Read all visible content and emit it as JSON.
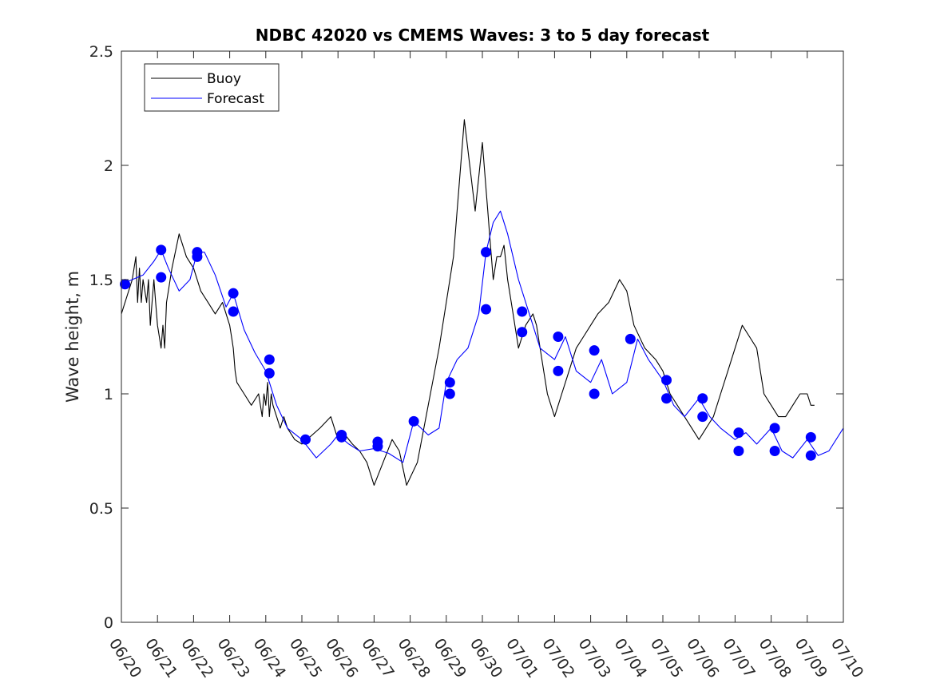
{
  "chart_data": {
    "type": "line",
    "title": "NDBC 42020 vs CMEMS Waves: 3 to 5 day forecast",
    "ylabel": "Wave height, m",
    "xlabel": "",
    "ylim": [
      0,
      2.5
    ],
    "yticks": [
      "0",
      "0.5",
      "1",
      "1.5",
      "2",
      "2.5"
    ],
    "x_ticks": [
      "06/20",
      "06/21",
      "06/22",
      "06/23",
      "06/24",
      "06/25",
      "06/26",
      "06/27",
      "06/28",
      "06/29",
      "06/30",
      "07/01",
      "07/02",
      "07/03",
      "07/04",
      "07/05",
      "07/06",
      "07/07",
      "07/08",
      "07/09",
      "07/10"
    ],
    "grid": false,
    "legend_position": "top-left",
    "colors": {
      "buoy": "#000000",
      "forecast": "#0000ff"
    },
    "legend": [
      {
        "label": "Buoy",
        "color": "#000000"
      },
      {
        "label": "Forecast",
        "color": "#0000ff"
      }
    ],
    "series": [
      {
        "name": "Buoy",
        "color": "#000000",
        "x": [
          0,
          0.3,
          0.4,
          0.45,
          0.5,
          0.55,
          0.6,
          0.65,
          0.7,
          0.75,
          0.8,
          0.85,
          0.9,
          0.95,
          1.0,
          1.05,
          1.1,
          1.15,
          1.2,
          1.25,
          1.3,
          1.4,
          1.6,
          1.8,
          2.0,
          2.2,
          2.4,
          2.6,
          2.8,
          3.0,
          3.05,
          3.1,
          3.15,
          3.2,
          3.4,
          3.6,
          3.8,
          3.9,
          3.95,
          4.0,
          4.05,
          4.1,
          4.15,
          4.2,
          4.3,
          4.4,
          4.5,
          4.6,
          4.8,
          5.0,
          5.5,
          5.8,
          6.0,
          6.2,
          6.4,
          6.6,
          6.8,
          7.0,
          7.5,
          7.7,
          7.9,
          8.2,
          8.5,
          8.8,
          8.9,
          9.0,
          9.2,
          9.5,
          9.8,
          10.0,
          10.1,
          10.15,
          10.2,
          10.25,
          10.3,
          10.4,
          10.5,
          10.6,
          10.7,
          10.8,
          10.9,
          11.0,
          11.2,
          11.4,
          11.5,
          11.6,
          11.7,
          11.8,
          11.9,
          12.0,
          12.1,
          12.2,
          12.4,
          12.6,
          12.8,
          13.0,
          13.2,
          13.5,
          13.8,
          14.0,
          14.2,
          14.5,
          14.8,
          15.0,
          15.2,
          15.4,
          15.6,
          15.8,
          16.0,
          16.2,
          16.4,
          16.6,
          16.8,
          17.0,
          17.2,
          17.4,
          17.6,
          17.8,
          18.0,
          18.2,
          18.4,
          18.6,
          18.8,
          19.0,
          19.1,
          19.2
        ],
        "y": [
          1.35,
          1.5,
          1.6,
          1.4,
          1.55,
          1.4,
          1.5,
          1.45,
          1.4,
          1.5,
          1.3,
          1.4,
          1.5,
          1.4,
          1.3,
          1.25,
          1.2,
          1.3,
          1.2,
          1.4,
          1.45,
          1.55,
          1.7,
          1.6,
          1.55,
          1.45,
          1.4,
          1.35,
          1.4,
          1.3,
          1.25,
          1.2,
          1.1,
          1.05,
          1.0,
          0.95,
          1.0,
          0.9,
          1.0,
          0.95,
          1.05,
          0.9,
          1.0,
          0.95,
          0.9,
          0.85,
          0.9,
          0.85,
          0.8,
          0.78,
          0.85,
          0.9,
          0.8,
          0.82,
          0.78,
          0.75,
          0.7,
          0.6,
          0.8,
          0.75,
          0.6,
          0.7,
          0.95,
          1.2,
          1.3,
          1.4,
          1.6,
          2.2,
          1.8,
          2.1,
          1.9,
          1.8,
          1.7,
          1.6,
          1.5,
          1.6,
          1.6,
          1.65,
          1.5,
          1.4,
          1.3,
          1.2,
          1.3,
          1.35,
          1.3,
          1.2,
          1.1,
          1.0,
          0.95,
          0.9,
          0.95,
          1.0,
          1.1,
          1.2,
          1.25,
          1.3,
          1.35,
          1.4,
          1.5,
          1.45,
          1.3,
          1.2,
          1.15,
          1.1,
          1.0,
          0.95,
          0.9,
          0.85,
          0.8,
          0.85,
          0.9,
          1.0,
          1.1,
          1.2,
          1.3,
          1.25,
          1.2,
          1.0,
          0.95,
          0.9,
          0.9,
          0.95,
          1.0,
          1.0,
          0.95,
          0.95
        ]
      },
      {
        "name": "Forecast",
        "color": "#0000ff",
        "x": [
          0,
          0.3,
          0.6,
          0.9,
          1.1,
          1.3,
          1.6,
          1.9,
          2.1,
          2.3,
          2.6,
          2.9,
          3.1,
          3.4,
          3.7,
          4.0,
          4.3,
          4.6,
          5.0,
          5.4,
          5.8,
          6.0,
          6.3,
          6.6,
          7.0,
          7.4,
          7.8,
          8.1,
          8.5,
          8.8,
          9.0,
          9.3,
          9.6,
          9.9,
          10.1,
          10.3,
          10.5,
          10.7,
          11.0,
          11.3,
          11.6,
          12.0,
          12.3,
          12.6,
          13.0,
          13.3,
          13.6,
          14.0,
          14.3,
          14.6,
          15.0,
          15.3,
          15.6,
          16.0,
          16.3,
          16.6,
          17.0,
          17.3,
          17.6,
          18.0,
          18.3,
          18.6,
          19.0,
          19.3,
          19.6,
          20.0
        ],
        "y": [
          1.48,
          1.5,
          1.52,
          1.58,
          1.63,
          1.55,
          1.45,
          1.5,
          1.62,
          1.62,
          1.52,
          1.38,
          1.44,
          1.28,
          1.18,
          1.1,
          0.95,
          0.85,
          0.8,
          0.72,
          0.78,
          0.82,
          0.78,
          0.75,
          0.76,
          0.74,
          0.7,
          0.88,
          0.82,
          0.85,
          1.05,
          1.15,
          1.2,
          1.35,
          1.62,
          1.75,
          1.8,
          1.7,
          1.5,
          1.35,
          1.2,
          1.15,
          1.25,
          1.1,
          1.05,
          1.15,
          1.0,
          1.05,
          1.24,
          1.15,
          1.06,
          0.95,
          0.9,
          0.98,
          0.9,
          0.85,
          0.8,
          0.83,
          0.78,
          0.85,
          0.75,
          0.72,
          0.8,
          0.73,
          0.75,
          0.85
        ]
      }
    ],
    "forecast_markers": {
      "x": [
        0.1,
        1.1,
        1.1,
        2.1,
        2.1,
        3.1,
        3.1,
        4.1,
        4.1,
        5.1,
        6.1,
        6.1,
        7.1,
        7.1,
        8.1,
        9.1,
        9.1,
        10.1,
        10.1,
        11.1,
        11.1,
        12.1,
        12.1,
        13.1,
        13.1,
        14.1,
        15.1,
        15.1,
        16.1,
        16.1,
        17.1,
        17.1,
        18.1,
        18.1,
        19.1,
        19.1
      ],
      "y": [
        1.48,
        1.63,
        1.51,
        1.62,
        1.6,
        1.44,
        1.36,
        1.15,
        1.09,
        0.8,
        0.82,
        0.81,
        0.79,
        0.77,
        0.88,
        1.05,
        1.0,
        1.62,
        1.37,
        1.36,
        1.27,
        1.25,
        1.1,
        1.19,
        1.0,
        1.24,
        1.06,
        0.98,
        0.98,
        0.9,
        0.83,
        0.75,
        0.85,
        0.75,
        0.81,
        0.73
      ]
    }
  }
}
